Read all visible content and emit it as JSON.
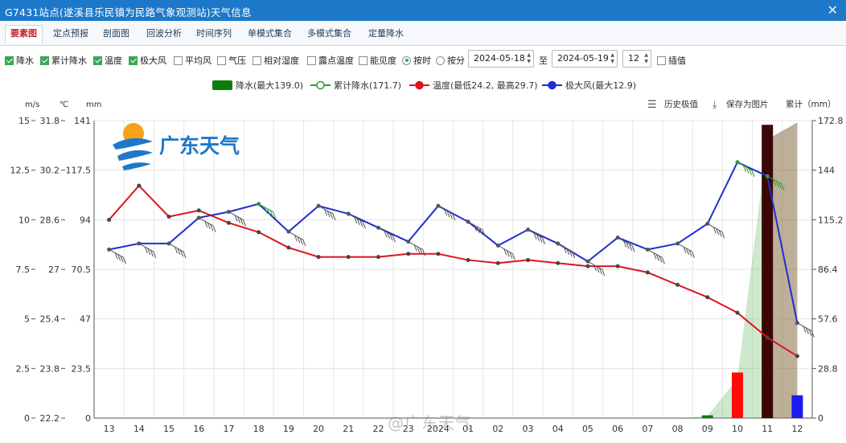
{
  "window": {
    "title": "G7431站点(遂溪县乐民镇为民路气象观测站)天气信息",
    "close_icon": "close-icon"
  },
  "tabs": [
    {
      "label": "要素图",
      "active": true
    },
    {
      "label": "定点预报",
      "active": false
    },
    {
      "label": "剖面图",
      "active": false
    },
    {
      "label": "回波分析",
      "active": false
    },
    {
      "label": "时间序列",
      "active": false
    },
    {
      "label": "单模式集合",
      "active": false
    },
    {
      "label": "多模式集合",
      "active": false
    },
    {
      "label": "定量降水",
      "active": false
    }
  ],
  "options": {
    "checkboxes": [
      {
        "label": "降水",
        "checked": true
      },
      {
        "label": "累计降水",
        "checked": true
      },
      {
        "label": "温度",
        "checked": true
      },
      {
        "label": "极大风",
        "checked": true
      },
      {
        "label": "平均风",
        "checked": false
      },
      {
        "label": "气压",
        "checked": false
      },
      {
        "label": "相对湿度",
        "checked": false
      },
      {
        "label": "露点温度",
        "checked": false
      },
      {
        "label": "能见度",
        "checked": false
      }
    ],
    "radios": [
      {
        "label": "按时",
        "checked": true
      },
      {
        "label": "按分",
        "checked": false
      }
    ],
    "date_from": "2024-05-18",
    "to_label": "至",
    "date_to": "2024-05-19",
    "hour": "12",
    "interp_label": "插值",
    "interp_checked": false
  },
  "toolbar": {
    "history_label": "历史极值",
    "save_label": "保存为图片",
    "cumulative_unit_label": "累计（mm）"
  },
  "watermark": "@广东天气",
  "logo_text": "广东天气",
  "colors": {
    "precip": "#0a7d0a",
    "cumulative": "#2e9b2e",
    "temperature": "#e0141e",
    "gust": "#1f2fd0",
    "title_bar": "#1d78c9"
  },
  "chart_data": {
    "type": "line",
    "legend": [
      {
        "name": "降水(最大139.0)",
        "kind": "bar",
        "color": "#0a7d0a"
      },
      {
        "name": "累计降水(171.7)",
        "kind": "line-hollow",
        "color": "#2e9b2e"
      },
      {
        "name": "温度(最低24.2, 最高29.7)",
        "kind": "line",
        "color": "#e0141e"
      },
      {
        "name": "极大风(最大12.9)",
        "kind": "line",
        "color": "#1f2fd0"
      }
    ],
    "axis_units": [
      "m/s",
      "℃",
      "mm"
    ],
    "x": [
      "13",
      "14",
      "15",
      "16",
      "17",
      "18",
      "19",
      "20",
      "21",
      "22",
      "23",
      "2024",
      "01",
      "02",
      "03",
      "04",
      "05",
      "06",
      "07",
      "08",
      "09",
      "10",
      "11",
      "12"
    ],
    "x_labels": [
      "13",
      "14",
      "15",
      "16",
      "17",
      "18",
      "19",
      "20",
      "21",
      "22",
      "23",
      "2024",
      "01",
      "02",
      "03",
      "04",
      "05",
      "06",
      "07",
      "08",
      "09",
      "10",
      "11",
      "12"
    ],
    "wind_ticks": [
      "0",
      "2.5",
      "5",
      "7.5",
      "10",
      "12.5",
      "15"
    ],
    "temp_ticks": [
      "22.2",
      "23.8",
      "25.4",
      "27",
      "28.6",
      "30.2",
      "31.8"
    ],
    "precip_ticks": [
      "0",
      "23.5",
      "47",
      "70.5",
      "94",
      "117.5",
      "141"
    ],
    "cum_ticks": [
      "0",
      "28.8",
      "57.6",
      "86.4",
      "115.2",
      "144",
      "172.8"
    ],
    "wind_range": [
      0,
      15
    ],
    "temp_range": [
      22.2,
      31.8
    ],
    "precip_range": [
      0,
      141
    ],
    "cum_range": [
      0,
      172.8
    ],
    "series": [
      {
        "name": "温度",
        "axis": "temp",
        "values": [
          28.6,
          29.7,
          28.7,
          28.9,
          28.5,
          28.2,
          27.7,
          27.4,
          27.4,
          27.4,
          27.5,
          27.5,
          27.3,
          27.2,
          27.3,
          27.2,
          27.1,
          27.1,
          26.9,
          26.5,
          26.1,
          25.6,
          24.8,
          24.2
        ]
      },
      {
        "name": "极大风",
        "axis": "wind",
        "values": [
          8.5,
          8.8,
          8.8,
          10.1,
          10.4,
          10.8,
          9.4,
          10.7,
          10.3,
          9.6,
          8.9,
          10.7,
          9.9,
          8.7,
          9.5,
          8.8,
          7.9,
          9.1,
          8.5,
          8.8,
          9.8,
          12.9,
          12.2,
          4.8
        ]
      },
      {
        "name": "降水",
        "axis": "precip",
        "values": [
          0,
          0,
          0,
          0,
          0,
          0,
          0,
          0,
          0,
          0,
          0,
          0,
          0,
          0,
          0,
          0,
          0,
          0,
          0,
          0,
          1.3,
          21.6,
          139.0,
          10.8
        ]
      },
      {
        "name": "累计降水",
        "axis": "cum",
        "values": [
          0,
          0,
          0,
          0,
          0,
          0,
          0,
          0,
          0,
          0,
          0,
          0,
          0,
          0,
          0,
          0,
          0,
          0,
          0,
          0,
          1.3,
          22.9,
          161.9,
          171.7
        ]
      }
    ],
    "grid": true
  }
}
